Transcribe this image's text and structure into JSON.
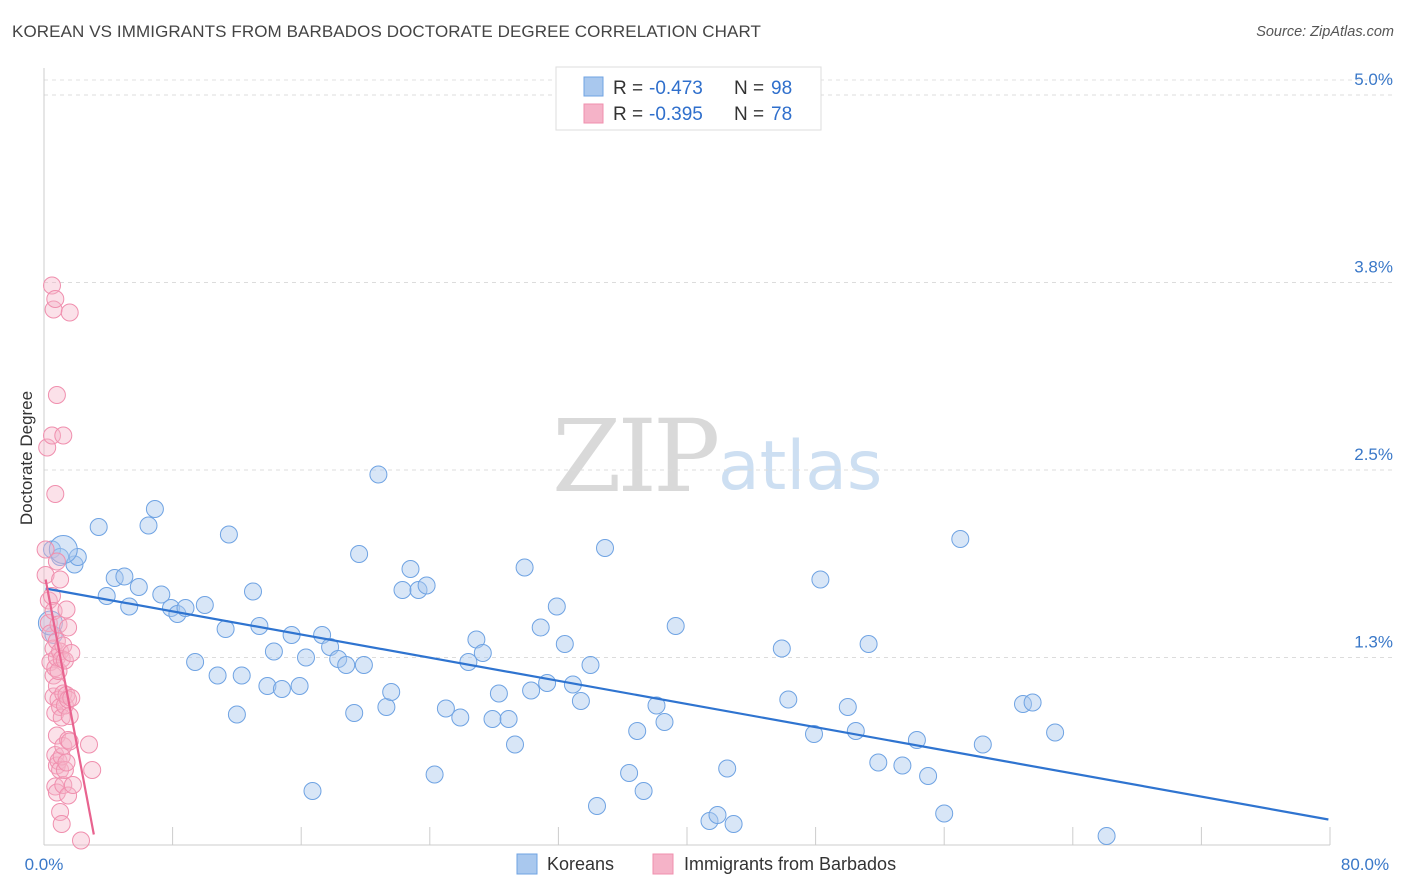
{
  "header": {
    "title": "KOREAN VS IMMIGRANTS FROM BARBADOS DOCTORATE DEGREE CORRELATION CHART",
    "source": "Source: ZipAtlas.com"
  },
  "watermark": {
    "zip": "ZIP",
    "atlas": "atlas"
  },
  "legend_box": {
    "rows": [
      {
        "r_label": "R =",
        "r_value": "-0.473",
        "n_label": "N =",
        "n_value": "98",
        "color": "#a9c8ee"
      },
      {
        "r_label": "R =",
        "r_value": "-0.395",
        "n_label": "N =",
        "n_value": "78",
        "color": "#f5b3c8"
      }
    ]
  },
  "bottom_legend": {
    "koreans": "Koreans",
    "barbados": "Immigrants from Barbados"
  },
  "chart_data": {
    "type": "scatter",
    "title": "KOREAN VS IMMIGRANTS FROM BARBADOS DOCTORATE DEGREE CORRELATION CHART",
    "xlabel": "",
    "ylabel": "Doctorate Degree",
    "xlim": [
      0,
      80
    ],
    "ylim": [
      0,
      5.0
    ],
    "x_tick_labels": [
      "0.0%",
      "80.0%"
    ],
    "y_ticks": [
      1.25,
      2.5,
      3.75,
      5.0
    ],
    "y_tick_labels": [
      "1.3%",
      "2.5%",
      "3.8%",
      "5.0%"
    ],
    "grid": "horizontal dashed",
    "series": [
      {
        "name": "Koreans",
        "color": "#6fa3e3",
        "line_color": "#2f74d0",
        "r": -0.473,
        "n": 98,
        "trend": {
          "x": [
            0.1,
            79.9
          ],
          "y": [
            1.71,
            0.17
          ]
        },
        "points": [
          [
            0.5,
            1.97
          ],
          [
            0.6,
            1.4
          ],
          [
            1.0,
            1.92
          ],
          [
            1.9,
            1.87
          ],
          [
            2.1,
            1.92
          ],
          [
            3.4,
            2.12
          ],
          [
            3.9,
            1.66
          ],
          [
            4.4,
            1.78
          ],
          [
            5.0,
            1.79
          ],
          [
            5.3,
            1.59
          ],
          [
            5.9,
            1.72
          ],
          [
            6.5,
            2.13
          ],
          [
            6.9,
            2.24
          ],
          [
            7.3,
            1.67
          ],
          [
            7.9,
            1.58
          ],
          [
            8.3,
            1.54
          ],
          [
            8.8,
            1.58
          ],
          [
            9.4,
            1.22
          ],
          [
            10.0,
            1.6
          ],
          [
            10.8,
            1.13
          ],
          [
            11.3,
            1.44
          ],
          [
            11.5,
            2.07
          ],
          [
            12.0,
            0.87
          ],
          [
            12.3,
            1.13
          ],
          [
            13.0,
            1.69
          ],
          [
            13.4,
            1.46
          ],
          [
            13.9,
            1.06
          ],
          [
            14.3,
            1.29
          ],
          [
            14.8,
            1.04
          ],
          [
            15.4,
            1.4
          ],
          [
            15.9,
            1.06
          ],
          [
            16.3,
            1.25
          ],
          [
            16.7,
            0.36
          ],
          [
            17.3,
            1.4
          ],
          [
            17.8,
            1.32
          ],
          [
            18.3,
            1.24
          ],
          [
            18.8,
            1.2
          ],
          [
            19.3,
            0.88
          ],
          [
            19.6,
            1.94
          ],
          [
            19.9,
            1.2
          ],
          [
            20.8,
            2.47
          ],
          [
            21.3,
            0.92
          ],
          [
            21.6,
            1.02
          ],
          [
            22.3,
            1.7
          ],
          [
            22.8,
            1.84
          ],
          [
            23.3,
            1.7
          ],
          [
            23.8,
            1.73
          ],
          [
            24.3,
            0.47
          ],
          [
            25.0,
            0.91
          ],
          [
            25.9,
            0.85
          ],
          [
            26.4,
            1.22
          ],
          [
            26.9,
            1.37
          ],
          [
            27.3,
            1.28
          ],
          [
            27.9,
            0.84
          ],
          [
            28.3,
            1.01
          ],
          [
            28.9,
            0.84
          ],
          [
            29.3,
            0.67
          ],
          [
            29.9,
            1.85
          ],
          [
            30.3,
            1.03
          ],
          [
            30.9,
            1.45
          ],
          [
            31.3,
            1.08
          ],
          [
            31.9,
            1.59
          ],
          [
            32.4,
            1.34
          ],
          [
            32.9,
            1.07
          ],
          [
            33.4,
            0.96
          ],
          [
            34.0,
            1.2
          ],
          [
            34.4,
            0.26
          ],
          [
            34.9,
            1.98
          ],
          [
            36.4,
            0.48
          ],
          [
            36.9,
            0.76
          ],
          [
            37.3,
            0.36
          ],
          [
            38.1,
            0.93
          ],
          [
            38.6,
            0.82
          ],
          [
            39.3,
            1.46
          ],
          [
            41.4,
            0.16
          ],
          [
            41.9,
            0.2
          ],
          [
            42.5,
            0.51
          ],
          [
            42.9,
            0.14
          ],
          [
            45.9,
            1.31
          ],
          [
            46.3,
            0.97
          ],
          [
            47.9,
            0.74
          ],
          [
            48.3,
            1.77
          ],
          [
            50.0,
            0.92
          ],
          [
            50.5,
            0.76
          ],
          [
            51.3,
            1.34
          ],
          [
            51.9,
            0.55
          ],
          [
            53.4,
            0.53
          ],
          [
            54.3,
            0.7
          ],
          [
            55.0,
            0.46
          ],
          [
            56.0,
            0.21
          ],
          [
            57.0,
            2.04
          ],
          [
            58.4,
            0.67
          ],
          [
            60.9,
            0.94
          ],
          [
            61.5,
            0.95
          ],
          [
            62.9,
            0.75
          ],
          [
            66.1,
            0.06
          ]
        ]
      },
      {
        "name": "Immigrants from Barbados",
        "color": "#f08fae",
        "line_color": "#e8638f",
        "r": -0.395,
        "n": 78,
        "trend": {
          "x": [
            0.1,
            3.1
          ],
          "y": [
            1.77,
            0.07
          ]
        },
        "points": [
          [
            0.1,
            1.97
          ],
          [
            0.1,
            1.8
          ],
          [
            0.2,
            2.65
          ],
          [
            0.3,
            1.63
          ],
          [
            0.3,
            1.48
          ],
          [
            0.4,
            1.41
          ],
          [
            0.4,
            1.22
          ],
          [
            0.5,
            3.73
          ],
          [
            0.5,
            2.73
          ],
          [
            0.5,
            1.66
          ],
          [
            0.6,
            3.57
          ],
          [
            0.6,
            1.56
          ],
          [
            0.6,
            1.31
          ],
          [
            0.6,
            1.13
          ],
          [
            0.6,
            0.99
          ],
          [
            0.7,
            3.64
          ],
          [
            0.7,
            2.34
          ],
          [
            0.7,
            1.18
          ],
          [
            0.7,
            0.88
          ],
          [
            0.7,
            0.6
          ],
          [
            0.7,
            0.39
          ],
          [
            0.8,
            3.0
          ],
          [
            0.8,
            1.89
          ],
          [
            0.8,
            1.36
          ],
          [
            0.8,
            1.25
          ],
          [
            0.8,
            1.06
          ],
          [
            0.8,
            0.73
          ],
          [
            0.8,
            0.53
          ],
          [
            0.8,
            0.35
          ],
          [
            0.9,
            1.47
          ],
          [
            0.9,
            1.16
          ],
          [
            0.9,
            0.97
          ],
          [
            0.9,
            0.56
          ],
          [
            1.0,
            1.77
          ],
          [
            1.0,
            1.29
          ],
          [
            1.0,
            0.92
          ],
          [
            1.0,
            0.5
          ],
          [
            1.0,
            0.22
          ],
          [
            1.1,
            1.24
          ],
          [
            1.1,
            0.85
          ],
          [
            1.1,
            0.59
          ],
          [
            1.1,
            0.14
          ],
          [
            1.2,
            2.73
          ],
          [
            1.2,
            1.33
          ],
          [
            1.2,
            1.01
          ],
          [
            1.2,
            0.66
          ],
          [
            1.2,
            0.4
          ],
          [
            1.3,
            1.23
          ],
          [
            1.3,
            0.93
          ],
          [
            1.3,
            0.5
          ],
          [
            1.4,
            1.57
          ],
          [
            1.4,
            1.0
          ],
          [
            1.4,
            0.55
          ],
          [
            1.5,
            1.45
          ],
          [
            1.5,
            0.97
          ],
          [
            1.5,
            0.7
          ],
          [
            1.5,
            0.33
          ],
          [
            1.6,
            3.55
          ],
          [
            1.6,
            0.86
          ],
          [
            1.6,
            0.69
          ],
          [
            1.7,
            1.28
          ],
          [
            1.7,
            0.98
          ],
          [
            1.8,
            0.4
          ],
          [
            2.3,
            0.03
          ],
          [
            2.8,
            0.67
          ],
          [
            3.0,
            0.5
          ]
        ]
      }
    ]
  }
}
